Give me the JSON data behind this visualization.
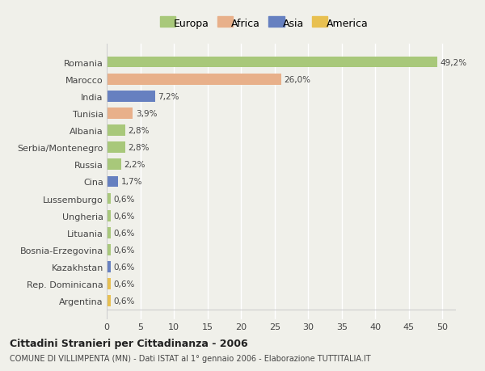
{
  "categories": [
    "Romania",
    "Marocco",
    "India",
    "Tunisia",
    "Albania",
    "Serbia/Montenegro",
    "Russia",
    "Cina",
    "Lussemburgo",
    "Ungheria",
    "Lituania",
    "Bosnia-Erzegovina",
    "Kazakhstan",
    "Rep. Dominicana",
    "Argentina"
  ],
  "values": [
    49.2,
    26.0,
    7.2,
    3.9,
    2.8,
    2.8,
    2.2,
    1.7,
    0.6,
    0.6,
    0.6,
    0.6,
    0.6,
    0.6,
    0.6
  ],
  "labels": [
    "49,2%",
    "26,0%",
    "7,2%",
    "3,9%",
    "2,8%",
    "2,8%",
    "2,2%",
    "1,7%",
    "0,6%",
    "0,6%",
    "0,6%",
    "0,6%",
    "0,6%",
    "0,6%",
    "0,6%"
  ],
  "colors": [
    "#a8c87a",
    "#e8b08a",
    "#6680c0",
    "#e8b08a",
    "#a8c87a",
    "#a8c87a",
    "#a8c87a",
    "#6680c0",
    "#a8c87a",
    "#a8c87a",
    "#a8c87a",
    "#a8c87a",
    "#6680c0",
    "#e8c050",
    "#e8c050"
  ],
  "legend_labels": [
    "Europa",
    "Africa",
    "Asia",
    "America"
  ],
  "legend_colors": [
    "#a8c87a",
    "#e8b08a",
    "#6680c0",
    "#e8c050"
  ],
  "title": "Cittadini Stranieri per Cittadinanza - 2006",
  "subtitle": "COMUNE DI VILLIMPENTA (MN) - Dati ISTAT al 1° gennaio 2006 - Elaborazione TUTTITALIA.IT",
  "xlim": [
    0,
    52
  ],
  "xticks": [
    0,
    5,
    10,
    15,
    20,
    25,
    30,
    35,
    40,
    45,
    50
  ],
  "background_color": "#f0f0ea",
  "bar_height": 0.65,
  "grid_color": "#ffffff",
  "text_color": "#444444"
}
